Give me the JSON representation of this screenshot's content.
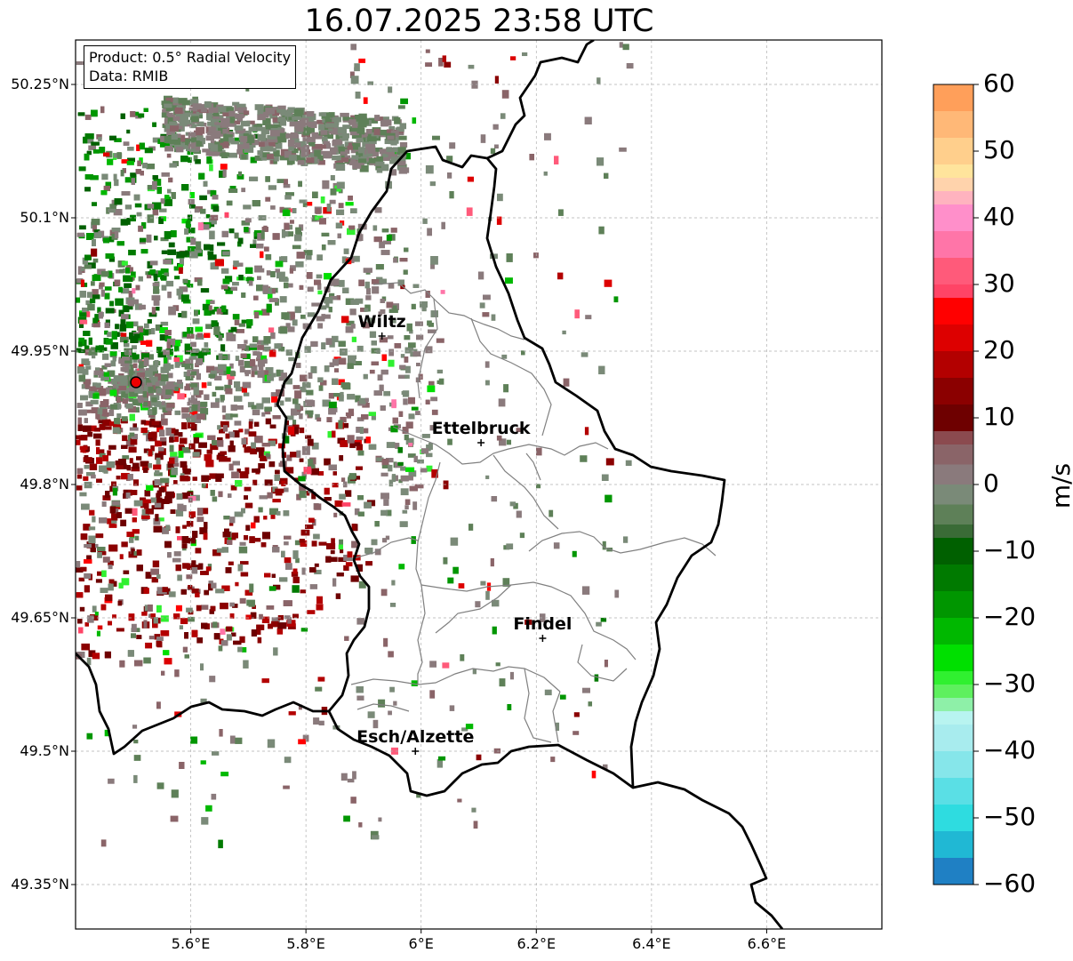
{
  "title": "16.07.2025 23:58 UTC",
  "info_box": {
    "product": "Product: 0.5° Radial Velocity",
    "data": "Data: RMIB"
  },
  "map": {
    "lon_range": [
      5.4,
      6.8
    ],
    "lat_range": [
      49.3,
      50.3
    ],
    "lat_ticks": [
      {
        "value": 50.25,
        "label": "50.25°N"
      },
      {
        "value": 50.1,
        "label": "50.1°N"
      },
      {
        "value": 49.95,
        "label": "49.95°N"
      },
      {
        "value": 49.8,
        "label": "49.8°N"
      },
      {
        "value": 49.65,
        "label": "49.65°N"
      },
      {
        "value": 49.5,
        "label": "49.5°N"
      },
      {
        "value": 49.35,
        "label": "49.35°N"
      }
    ],
    "lon_ticks": [
      {
        "value": 5.6,
        "label": "5.6°E"
      },
      {
        "value": 5.8,
        "label": "5.8°E"
      },
      {
        "value": 6.0,
        "label": "6°E"
      },
      {
        "value": 6.2,
        "label": "6.2°E"
      },
      {
        "value": 6.4,
        "label": "6.4°E"
      },
      {
        "value": 6.6,
        "label": "6.6°E"
      }
    ],
    "radar_site": {
      "lon": 5.505,
      "lat": 49.915
    },
    "cities": [
      {
        "name": "Wiltz",
        "lon": 5.932,
        "lat": 49.967
      },
      {
        "name": "Ettelbruck",
        "lon": 6.104,
        "lat": 49.847
      },
      {
        "name": "Findel",
        "lon": 6.211,
        "lat": 49.627
      },
      {
        "name": "Esch/Alzette",
        "lon": 5.99,
        "lat": 49.5
      }
    ]
  },
  "colorbar": {
    "unit": "m/s",
    "min": -60,
    "max": 60,
    "ticks": [
      {
        "value": 60,
        "label": "60"
      },
      {
        "value": 50,
        "label": "50"
      },
      {
        "value": 40,
        "label": "40"
      },
      {
        "value": 30,
        "label": "30"
      },
      {
        "value": 20,
        "label": "20"
      },
      {
        "value": 10,
        "label": "10"
      },
      {
        "value": 0,
        "label": "0"
      },
      {
        "value": -10,
        "label": "−10"
      },
      {
        "value": -20,
        "label": "−20"
      },
      {
        "value": -30,
        "label": "−30"
      },
      {
        "value": -40,
        "label": "−40"
      },
      {
        "value": -50,
        "label": "−50"
      },
      {
        "value": -60,
        "label": "−60"
      }
    ],
    "bands": [
      {
        "from": 56,
        "to": 60,
        "color": "#ff9f5a"
      },
      {
        "from": 52,
        "to": 56,
        "color": "#ffb877"
      },
      {
        "from": 48,
        "to": 52,
        "color": "#ffcf8c"
      },
      {
        "from": 46,
        "to": 48,
        "color": "#ffe49c"
      },
      {
        "from": 44,
        "to": 46,
        "color": "#ffd3ac"
      },
      {
        "from": 42,
        "to": 44,
        "color": "#ffb3bf"
      },
      {
        "from": 38,
        "to": 42,
        "color": "#ff8fca"
      },
      {
        "from": 34,
        "to": 38,
        "color": "#ff75a8"
      },
      {
        "from": 30,
        "to": 34,
        "color": "#ff5a7a"
      },
      {
        "from": 28,
        "to": 30,
        "color": "#ff4466"
      },
      {
        "from": 24,
        "to": 28,
        "color": "#ff0000"
      },
      {
        "from": 20,
        "to": 24,
        "color": "#dd0000"
      },
      {
        "from": 16,
        "to": 20,
        "color": "#b30000"
      },
      {
        "from": 12,
        "to": 16,
        "color": "#8b0000"
      },
      {
        "from": 8,
        "to": 12,
        "color": "#6e0000"
      },
      {
        "from": 6,
        "to": 8,
        "color": "#8b4a4f"
      },
      {
        "from": 3,
        "to": 6,
        "color": "#8a6468"
      },
      {
        "from": 0,
        "to": 3,
        "color": "#8a7a7c"
      },
      {
        "from": -3,
        "to": 0,
        "color": "#7a8a78"
      },
      {
        "from": -6,
        "to": -3,
        "color": "#5e8058"
      },
      {
        "from": -8,
        "to": -6,
        "color": "#3a6b36"
      },
      {
        "from": -12,
        "to": -8,
        "color": "#006000"
      },
      {
        "from": -16,
        "to": -12,
        "color": "#007a00"
      },
      {
        "from": -20,
        "to": -16,
        "color": "#009600"
      },
      {
        "from": -24,
        "to": -20,
        "color": "#00b800"
      },
      {
        "from": -28,
        "to": -24,
        "color": "#00e000"
      },
      {
        "from": -30,
        "to": -28,
        "color": "#30f030"
      },
      {
        "from": -32,
        "to": -30,
        "color": "#5ef05e"
      },
      {
        "from": -34,
        "to": -32,
        "color": "#8ef0a8"
      },
      {
        "from": -36,
        "to": -34,
        "color": "#b8f4f0"
      },
      {
        "from": -40,
        "to": -36,
        "color": "#a8ecee"
      },
      {
        "from": -44,
        "to": -40,
        "color": "#86e6ea"
      },
      {
        "from": -48,
        "to": -44,
        "color": "#5adfe5"
      },
      {
        "from": -52,
        "to": -48,
        "color": "#2edce0"
      },
      {
        "from": -56,
        "to": -52,
        "color": "#20b8d4"
      },
      {
        "from": -60,
        "to": -56,
        "color": "#1f80c4"
      }
    ]
  }
}
